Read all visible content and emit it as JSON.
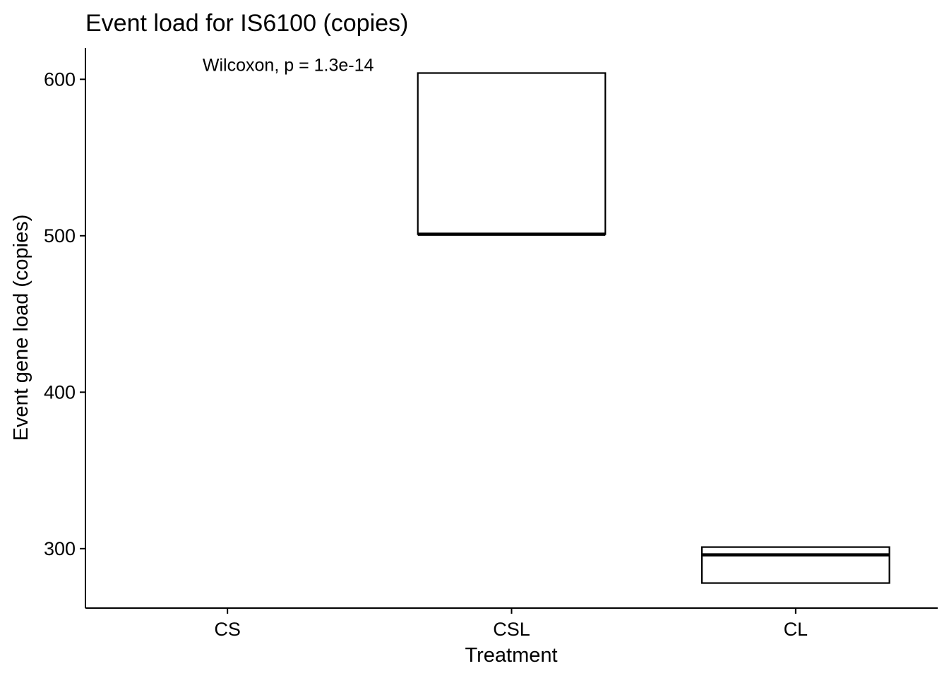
{
  "chart_data": {
    "type": "box",
    "title": "Event load for IS6100 (copies)",
    "xlabel": "Treatment",
    "ylabel": "Event gene load (copies)",
    "categories": [
      "CS",
      "CSL",
      "CL"
    ],
    "ylim": [
      262,
      620
    ],
    "yticks": [
      300,
      400,
      500,
      600
    ],
    "grid": false,
    "legend": "none",
    "boxes": [
      {
        "category": "CS",
        "q1": null,
        "median": null,
        "q3": null
      },
      {
        "category": "CSL",
        "q1": 501,
        "median": 501,
        "q3": 604
      },
      {
        "category": "CL",
        "q1": 278,
        "median": 296,
        "q3": 301
      }
    ],
    "annotation": {
      "text": "Wilcoxon, p = 1.3e-14",
      "x_category": "CS",
      "y": 609
    },
    "colors": {
      "stroke": "#000000",
      "fill": "#ffffff"
    }
  }
}
